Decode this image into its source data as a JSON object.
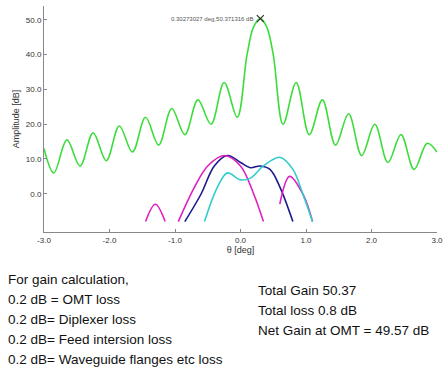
{
  "chart_data": {
    "type": "line",
    "x_label": "θ [deg]",
    "y_label": "Amplitude [dB]",
    "xlim": [
      -3,
      3
    ],
    "ylim": [
      -11,
      54
    ],
    "xticks": [
      {
        "value": -3,
        "label": "-3.0"
      },
      {
        "value": -2,
        "label": "-2.0"
      },
      {
        "value": -1,
        "label": "-1.0"
      },
      {
        "value": 0,
        "label": "0.0"
      },
      {
        "value": 1,
        "label": "1.0"
      },
      {
        "value": 2,
        "label": "2.0"
      },
      {
        "value": 3,
        "label": "3.0"
      }
    ],
    "yticks": [
      {
        "value": 0,
        "label": "0.0"
      },
      {
        "value": 10,
        "label": "10.0"
      },
      {
        "value": 20,
        "label": "20.0"
      },
      {
        "value": 30,
        "label": "30.0"
      },
      {
        "value": 40,
        "label": "40.0"
      },
      {
        "value": 50,
        "label": "50.0"
      }
    ],
    "grid": false,
    "series": [
      {
        "color": "#3ddc3d",
        "line_style": "solid",
        "x": [
          -3.0,
          -2.85,
          -2.65,
          -2.45,
          -2.25,
          -2.05,
          -1.85,
          -1.65,
          -1.45,
          -1.25,
          -1.05,
          -0.85,
          -0.65,
          -0.45,
          -0.25,
          -0.05,
          0.1,
          0.2,
          0.30273027,
          0.4,
          0.5,
          0.65,
          0.85,
          1.05,
          1.25,
          1.45,
          1.65,
          1.85,
          2.05,
          2.25,
          2.45,
          2.65,
          2.85,
          3.0
        ],
        "values": [
          13,
          6,
          15.5,
          8,
          17.5,
          9.5,
          19.5,
          12,
          22,
          14,
          24.5,
          17,
          27,
          20,
          32,
          22,
          40,
          48,
          50.371316,
          48,
          40,
          20,
          32,
          17,
          27,
          14,
          23,
          11,
          20,
          9,
          17,
          7,
          14.5,
          12
        ]
      },
      {
        "color": "#1a1a8c",
        "line_style": "solid",
        "x": [
          -0.85,
          -0.6,
          -0.4,
          -0.2,
          0.0,
          0.15,
          0.3,
          0.45,
          0.6,
          0.8
        ],
        "values": [
          -8,
          0,
          8,
          11,
          9,
          7.5,
          8,
          7,
          2,
          -8
        ]
      },
      {
        "color": "#e020c0",
        "line_style": "solid",
        "x": [
          -1.45,
          -1.3,
          -1.15,
          -1.0,
          -0.95,
          -0.7,
          -0.5,
          -0.25,
          0.0,
          0.2,
          0.35,
          0.4,
          0.6,
          0.75,
          0.95,
          1.1
        ],
        "values": [
          -8,
          -3,
          -8,
          null,
          -8,
          2,
          8,
          11,
          8,
          0,
          -8,
          null,
          -3,
          5,
          0,
          -8
        ]
      },
      {
        "color": "#33cccc",
        "line_style": "solid",
        "x": [
          -0.55,
          -0.35,
          -0.2,
          0.0,
          0.15,
          0.35,
          0.6,
          0.8,
          0.95,
          1.1
        ],
        "values": [
          -8,
          2,
          6,
          4,
          4.5,
          8,
          10.5,
          7,
          0,
          -8
        ]
      }
    ],
    "annotations": [
      {
        "x": 0.30273027,
        "y": 50.371316,
        "text": "0.30273027 deg,50.371316 dB"
      }
    ]
  },
  "notes": {
    "left": [
      "For gain calculation,",
      "0.2 dB = OMT loss",
      "0.2 dB= Diplexer loss",
      "0.2 dB= Feed intersion loss",
      "0.2 dB= Waveguide flanges etc loss"
    ],
    "right": [
      "Total Gain 50.37",
      "Total loss 0.8 dB",
      "Net Gain at OMT = 49.57 dB"
    ]
  }
}
